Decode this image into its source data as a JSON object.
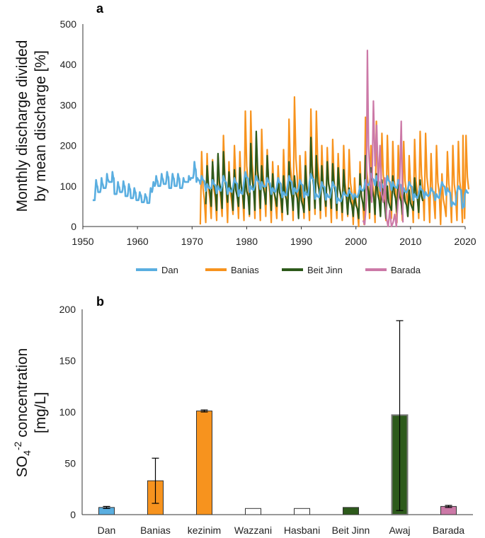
{
  "chart_data": [
    {
      "type": "line",
      "panel_label": "a",
      "title": "",
      "xlabel": "",
      "ylabel": "Monthly discharge divided by mean discharge [%]",
      "ylabel_lines": [
        "Monthly discharge divided",
        "by mean discharge [%]"
      ],
      "xlim": [
        1950,
        2020
      ],
      "ylim": [
        0,
        500
      ],
      "xticks": [
        1950,
        1960,
        1970,
        1980,
        1990,
        2000,
        2010,
        2020
      ],
      "yticks": [
        0,
        100,
        200,
        300,
        400,
        500
      ],
      "grid": false,
      "legend_position": "bottom",
      "series": [
        {
          "name": "Dan",
          "color": "#5aaee0",
          "x": [
            1951.8,
            1952.3,
            1952.8,
            1953.3,
            1953.8,
            1954.3,
            1954.8,
            1955.3,
            1955.8,
            1956.3,
            1956.8,
            1957.3,
            1957.8,
            1958.3,
            1958.8,
            1959.3,
            1959.8,
            1960.3,
            1960.8,
            1961.3,
            1961.8,
            1962.3,
            1962.8,
            1963.3,
            1963.8,
            1964.3,
            1964.8,
            1965.3,
            1965.8,
            1966.3,
            1966.8,
            1967.3,
            1967.8,
            1968.3,
            1968.8,
            1969.3,
            1969.8,
            1970.3,
            1970.8,
            1971.5,
            1972.5,
            1973.5,
            1974.5,
            1975.5,
            1976.5,
            1977.5,
            1978.5,
            1979.5,
            1980.5,
            1981.5,
            1982.5,
            1983.5,
            1984.5,
            1985.5,
            1986.5,
            1987.5,
            1988.5,
            1989.5,
            1990.5,
            1991.5,
            1992.5,
            1993.5,
            1994.5,
            1995.5,
            1996.5,
            1997.5,
            1998.5,
            1999.5,
            2000.5,
            2001.5,
            2002.5,
            2003.5,
            2004.5,
            2005.5,
            2006.5,
            2007.5,
            2008.5,
            2009.5,
            2010.5,
            2011.5,
            2012.5,
            2013.5,
            2014.5,
            2015.5,
            2016.5,
            2017.5,
            2018.5,
            2019.5,
            2019.9
          ],
          "y": [
            65,
            115,
            85,
            120,
            95,
            130,
            110,
            135,
            80,
            110,
            85,
            112,
            75,
            105,
            70,
            95,
            65,
            85,
            60,
            80,
            58,
            95,
            110,
            125,
            100,
            130,
            105,
            135,
            95,
            130,
            100,
            130,
            95,
            120,
            110,
            125,
            120,
            160,
            120,
            125,
            105,
            115,
            100,
            125,
            95,
            120,
            90,
            135,
            100,
            125,
            110,
            120,
            95,
            120,
            85,
            125,
            95,
            115,
            85,
            130,
            80,
            110,
            80,
            110,
            70,
            85,
            90,
            80,
            100,
            115,
            130,
            125,
            105,
            125,
            110,
            115,
            95,
            110,
            80,
            100,
            85,
            95,
            80,
            110,
            95,
            60,
            100,
            55,
            90
          ],
          "baseline": [
            65,
            90,
            85,
            95,
            95,
            105,
            110,
            110,
            80,
            90,
            85,
            92,
            75,
            85,
            70,
            78,
            65,
            72,
            60,
            68,
            58,
            80,
            95,
            105,
            100,
            110,
            105,
            115,
            95,
            112,
            100,
            112,
            95,
            105,
            110,
            110,
            120,
            130,
            110,
            105,
            88,
            95,
            82,
            100,
            80,
            98,
            75,
            110,
            85,
            102,
            92,
            100,
            80,
            98,
            72,
            102,
            80,
            95,
            72,
            108,
            68,
            90,
            66,
            90,
            58,
            72,
            75,
            68,
            82,
            95,
            108,
            102,
            88,
            102,
            90,
            95,
            78,
            92,
            65,
            82,
            70,
            80,
            65,
            92,
            78,
            50,
            85,
            45,
            78
          ]
        },
        {
          "name": "Banias",
          "color": "#f7931e",
          "x": [
            1971.5,
            1972.5,
            1973.5,
            1974.5,
            1975.5,
            1976.5,
            1977.5,
            1978.5,
            1979.5,
            1980.5,
            1981.5,
            1982.5,
            1983.5,
            1984.5,
            1985.5,
            1986.5,
            1987.5,
            1988.5,
            1989.5,
            1990.5,
            1991.5,
            1992.5,
            1993.5,
            1994.5,
            1995.5,
            1996.5,
            1997.5,
            1998.5,
            1999.5,
            2000.5,
            2001.5,
            2002.5,
            2003.5,
            2004.5,
            2005.5,
            2006.5,
            2007.5,
            2008.5,
            2009.5,
            2010.5,
            2011.5,
            2012.5,
            2013.5,
            2014.5,
            2015.5,
            2016.5,
            2017.5,
            2018.5,
            2019.5,
            2019.9
          ],
          "y": [
            185,
            180,
            165,
            175,
            225,
            160,
            200,
            185,
            285,
            285,
            220,
            240,
            190,
            160,
            150,
            190,
            265,
            320,
            175,
            185,
            290,
            285,
            200,
            195,
            215,
            180,
            200,
            190,
            120,
            160,
            270,
            200,
            260,
            230,
            225,
            210,
            200,
            210,
            175,
            215,
            235,
            230,
            180,
            200,
            130,
            185,
            200,
            210,
            225,
            225
          ],
          "low": [
            5,
            10,
            20,
            15,
            25,
            10,
            30,
            20,
            15,
            25,
            20,
            15,
            25,
            10,
            20,
            15,
            30,
            15,
            25,
            20,
            15,
            30,
            20,
            25,
            10,
            20,
            15,
            25,
            5,
            0,
            5,
            20,
            10,
            25,
            15,
            20,
            10,
            15,
            25,
            10,
            20,
            15,
            10,
            20,
            5,
            25,
            10,
            15,
            10,
            20
          ]
        },
        {
          "name": "Beit Jinn",
          "color": "#2d5a1b",
          "x": [
            1972.5,
            1973.5,
            1974.5,
            1975.5,
            1976.5,
            1977.5,
            1978.5,
            1979.5,
            1980.5,
            1981.5,
            1982.5,
            1983.5,
            1984.5,
            1985.5,
            1986.5,
            1987.5,
            1988.5,
            1989.5,
            1990.5,
            1991.5,
            1992.5,
            1993.5,
            1994.5,
            1995.5,
            1996.5,
            1997.5,
            1998.5,
            1999.5,
            2000.5,
            2001.5,
            2002.5,
            2003.5,
            2004.5,
            2005.5,
            2006.5,
            2007.5,
            2008.5,
            2009.5,
            2010.5,
            2011.5
          ],
          "y": [
            150,
            160,
            180,
            185,
            135,
            140,
            145,
            130,
            205,
            235,
            150,
            175,
            130,
            120,
            125,
            160,
            125,
            110,
            150,
            220,
            175,
            150,
            160,
            155,
            145,
            140,
            95,
            80,
            130,
            175,
            145,
            130,
            115,
            100,
            125,
            115,
            95,
            90,
            120,
            115
          ],
          "low": [
            55,
            50,
            40,
            45,
            60,
            40,
            50,
            45,
            30,
            40,
            45,
            55,
            40,
            50,
            35,
            30,
            40,
            20,
            35,
            40,
            45,
            40,
            50,
            45,
            40,
            35,
            30,
            25,
            20,
            40,
            35,
            30,
            25,
            20,
            40,
            35,
            30,
            25,
            40,
            35
          ]
        },
        {
          "name": "Barada",
          "color": "#cc79a7",
          "x": [
            2001.3,
            2001.6,
            2001.9,
            2002.1,
            2002.3,
            2002.6,
            2002.9,
            2003.2,
            2003.5,
            2003.8,
            2004.1,
            2004.4,
            2004.7,
            2005.0,
            2005.3,
            2005.6,
            2005.9,
            2006.2,
            2006.5,
            2006.8,
            2007.1,
            2007.4,
            2007.7,
            2008.0,
            2008.3,
            2008.6
          ],
          "y": [
            15,
            5,
            60,
            435,
            200,
            120,
            60,
            310,
            150,
            250,
            100,
            200,
            80,
            60,
            120,
            20,
            0,
            40,
            0,
            10,
            30,
            0,
            60,
            100,
            260,
            10
          ]
        }
      ]
    },
    {
      "type": "bar",
      "panel_label": "b",
      "title": "",
      "xlabel": "",
      "ylabel": "SO4-2 concentration [mg/L]",
      "ylabel_lines": [
        "SO",
        "[mg/L]"
      ],
      "ylabel_sub": "4",
      "ylabel_sup": "-2",
      "ylabel_rest": " concentration",
      "ylim": [
        0,
        200
      ],
      "yticks": [
        0,
        50,
        100,
        150,
        200
      ],
      "grid": false,
      "categories": [
        "Dan",
        "Banias",
        "kezinim",
        "Wazzani",
        "Hasbani",
        "Beit Jinn",
        "Awaj",
        "Barada"
      ],
      "values": [
        7,
        33,
        101,
        6,
        6,
        7,
        97,
        8
      ],
      "error_low": [
        1,
        22,
        1,
        0,
        0,
        0,
        93,
        1
      ],
      "error_high": [
        1,
        22,
        1,
        0,
        0,
        0,
        92,
        1
      ],
      "colors": [
        "#5aaee0",
        "#f7931e",
        "#f7931e",
        "#ffffff",
        "#ffffff",
        "#2d5a1b",
        "#2d5a1b",
        "#cc79a7"
      ]
    }
  ]
}
